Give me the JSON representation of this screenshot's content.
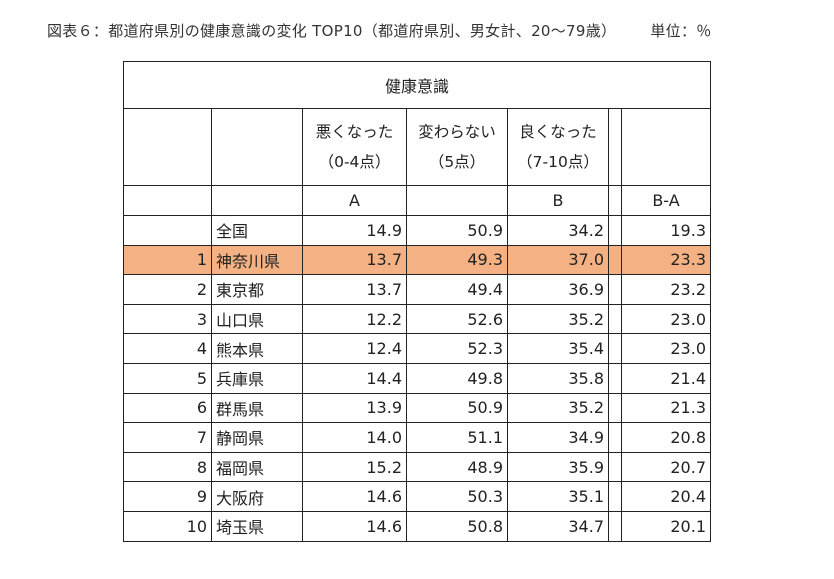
{
  "title": "図表６：都道府県別の健康意識の変化 TOP10（都道府県別、男女計、20～79歳）",
  "unit": "単位：％",
  "table": {
    "header": "健康意識",
    "columns": {
      "worse": {
        "line1": "悪くなった",
        "line2": "（0-4点）",
        "letter": "A"
      },
      "same": {
        "line1": "変わらない",
        "line2": "（5点）",
        "letter": ""
      },
      "better": {
        "line1": "良くなった",
        "line2": "（7-10点）",
        "letter": "B"
      },
      "diff": {
        "letter": "B-A"
      }
    },
    "rows": [
      {
        "rank": "",
        "pref": "全国",
        "a": "14.9",
        "same": "50.9",
        "b": "34.2",
        "diff": "19.3"
      },
      {
        "rank": "1",
        "pref": "神奈川県",
        "a": "13.7",
        "same": "49.3",
        "b": "37.0",
        "diff": "23.3"
      },
      {
        "rank": "2",
        "pref": "東京都",
        "a": "13.7",
        "same": "49.4",
        "b": "36.9",
        "diff": "23.2"
      },
      {
        "rank": "3",
        "pref": "山口県",
        "a": "12.2",
        "same": "52.6",
        "b": "35.2",
        "diff": "23.0"
      },
      {
        "rank": "4",
        "pref": "熊本県",
        "a": "12.4",
        "same": "52.3",
        "b": "35.4",
        "diff": "23.0"
      },
      {
        "rank": "5",
        "pref": "兵庫県",
        "a": "14.4",
        "same": "49.8",
        "b": "35.8",
        "diff": "21.4"
      },
      {
        "rank": "6",
        "pref": "群馬県",
        "a": "13.9",
        "same": "50.9",
        "b": "35.2",
        "diff": "21.3"
      },
      {
        "rank": "7",
        "pref": "静岡県",
        "a": "14.0",
        "same": "51.1",
        "b": "34.9",
        "diff": "20.8"
      },
      {
        "rank": "8",
        "pref": "福岡県",
        "a": "15.2",
        "same": "48.9",
        "b": "35.9",
        "diff": "20.7"
      },
      {
        "rank": "9",
        "pref": "大阪府",
        "a": "14.6",
        "same": "50.3",
        "b": "35.1",
        "diff": "20.4"
      },
      {
        "rank": "10",
        "pref": "埼玉県",
        "a": "14.6",
        "same": "50.8",
        "b": "34.7",
        "diff": "20.1"
      }
    ],
    "highlight_color": "#f4b183"
  }
}
